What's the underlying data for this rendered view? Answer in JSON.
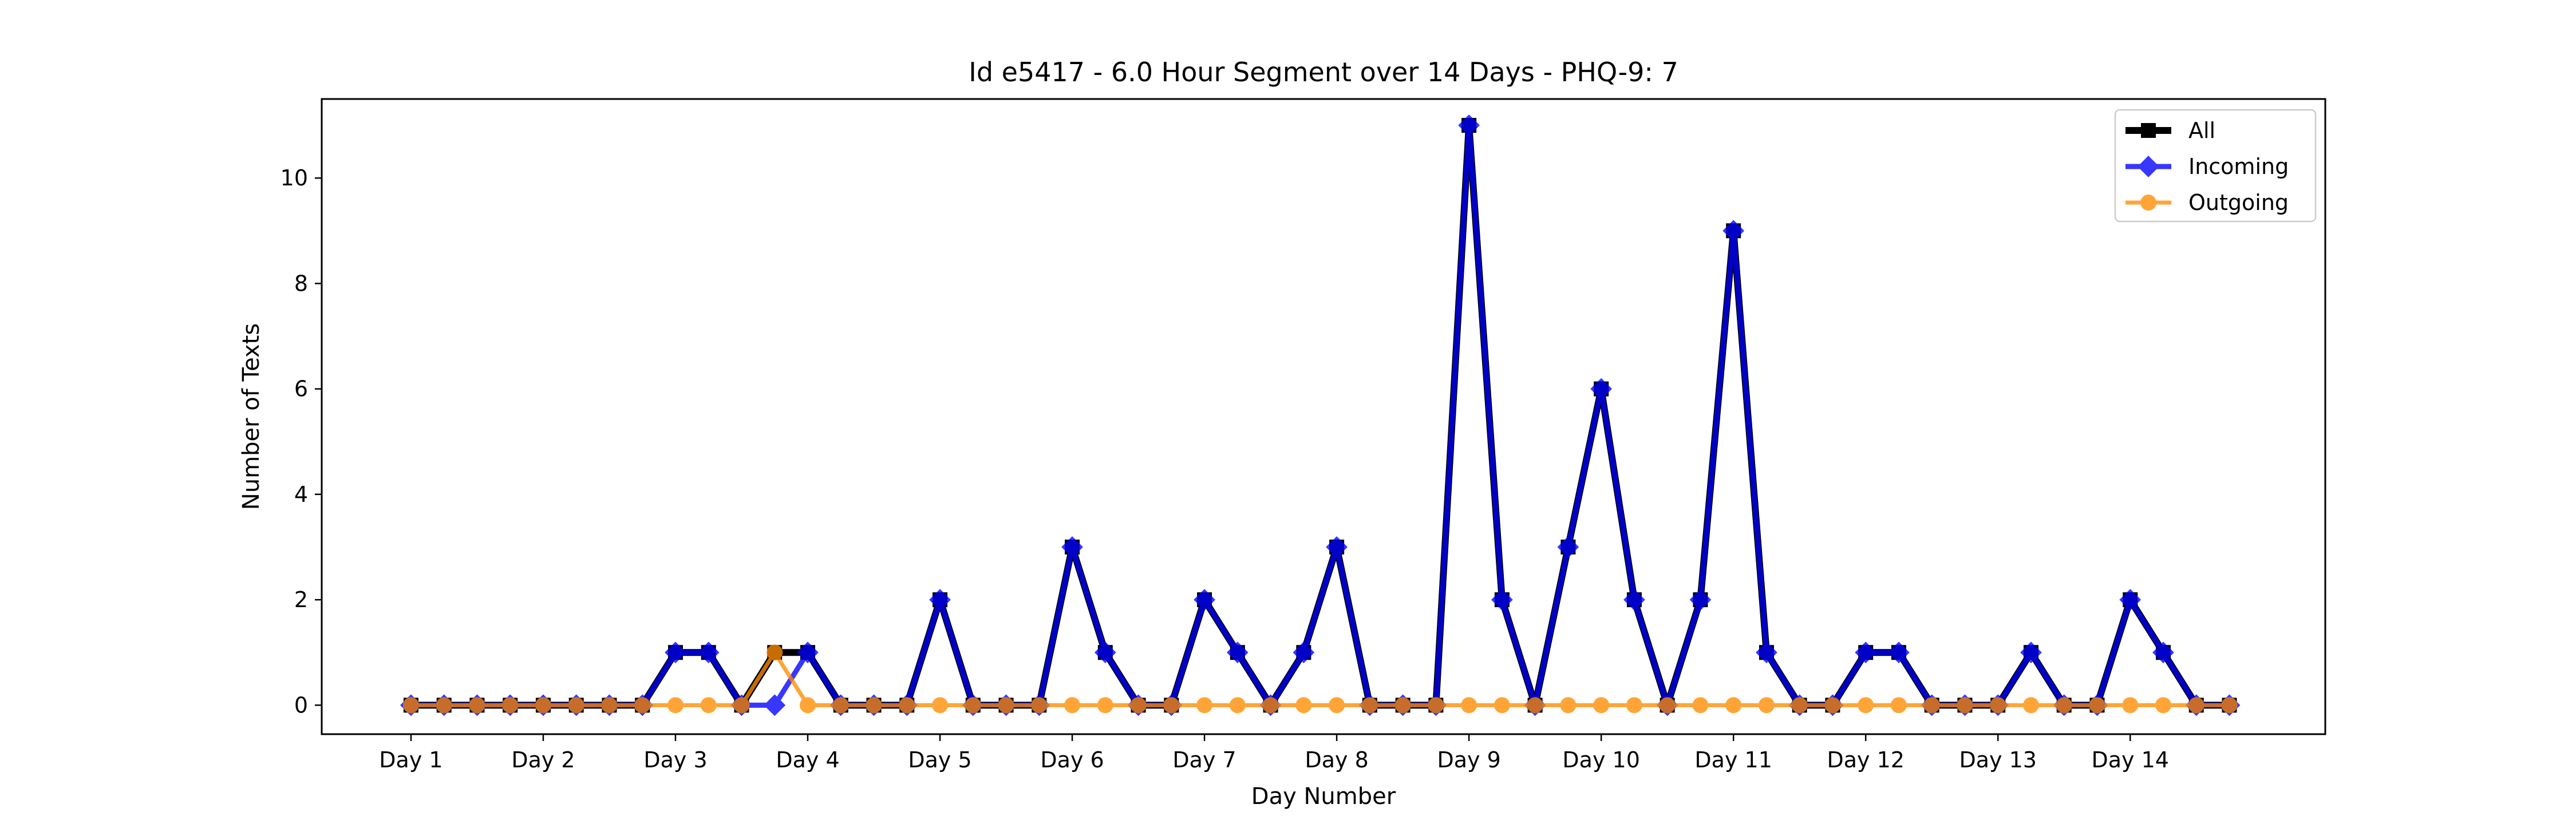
{
  "chart_data": {
    "type": "line",
    "title": "Id e5417 - 6.0 Hour Segment over 14 Days - PHQ-9: 7",
    "xlabel": "Day Number",
    "ylabel": "Number of Texts",
    "ylim": [
      -0.55,
      11.5
    ],
    "xlim": [
      -2.7,
      57.9
    ],
    "x_ticks": [
      {
        "pos": 0,
        "label": "Day 1"
      },
      {
        "pos": 4,
        "label": "Day 2"
      },
      {
        "pos": 8,
        "label": "Day 3"
      },
      {
        "pos": 12,
        "label": "Day 4"
      },
      {
        "pos": 16,
        "label": "Day 5"
      },
      {
        "pos": 20,
        "label": "Day 6"
      },
      {
        "pos": 24,
        "label": "Day 7"
      },
      {
        "pos": 28,
        "label": "Day 8"
      },
      {
        "pos": 32,
        "label": "Day 9"
      },
      {
        "pos": 36,
        "label": "Day 10"
      },
      {
        "pos": 40,
        "label": "Day 11"
      },
      {
        "pos": 44,
        "label": "Day 12"
      },
      {
        "pos": 48,
        "label": "Day 13"
      },
      {
        "pos": 52,
        "label": "Day 14"
      }
    ],
    "y_ticks": [
      0,
      2,
      4,
      6,
      8,
      10
    ],
    "legend_position": "top-right",
    "series": [
      {
        "name": "All",
        "color": "#000000",
        "marker": "square",
        "values": [
          0,
          0,
          0,
          0,
          0,
          0,
          0,
          0,
          1,
          1,
          0,
          1,
          1,
          0,
          0,
          0,
          2,
          0,
          0,
          0,
          3,
          1,
          0,
          0,
          2,
          1,
          0,
          1,
          3,
          0,
          0,
          0,
          11,
          2,
          0,
          3,
          6,
          2,
          0,
          2,
          9,
          1,
          0,
          0,
          1,
          1,
          0,
          0,
          0,
          1,
          0,
          0,
          2,
          1,
          0,
          0
        ]
      },
      {
        "name": "Incoming",
        "color": "#0000ff",
        "marker": "diamond",
        "values": [
          0,
          0,
          0,
          0,
          0,
          0,
          0,
          0,
          1,
          1,
          0,
          0,
          1,
          0,
          0,
          0,
          2,
          0,
          0,
          0,
          3,
          1,
          0,
          0,
          2,
          1,
          0,
          1,
          3,
          0,
          0,
          0,
          11,
          2,
          0,
          3,
          6,
          2,
          0,
          2,
          9,
          1,
          0,
          0,
          1,
          1,
          0,
          0,
          0,
          1,
          0,
          0,
          2,
          1,
          0,
          0
        ]
      },
      {
        "name": "Outgoing",
        "color": "#ff8c00",
        "marker": "circle",
        "values": [
          0,
          0,
          0,
          0,
          0,
          0,
          0,
          0,
          0,
          0,
          0,
          1,
          0,
          0,
          0,
          0,
          0,
          0,
          0,
          0,
          0,
          0,
          0,
          0,
          0,
          0,
          0,
          0,
          0,
          0,
          0,
          0,
          0,
          0,
          0,
          0,
          0,
          0,
          0,
          0,
          0,
          0,
          0,
          0,
          0,
          0,
          0,
          0,
          0,
          0,
          0,
          0,
          0,
          0,
          0,
          0
        ]
      }
    ]
  }
}
